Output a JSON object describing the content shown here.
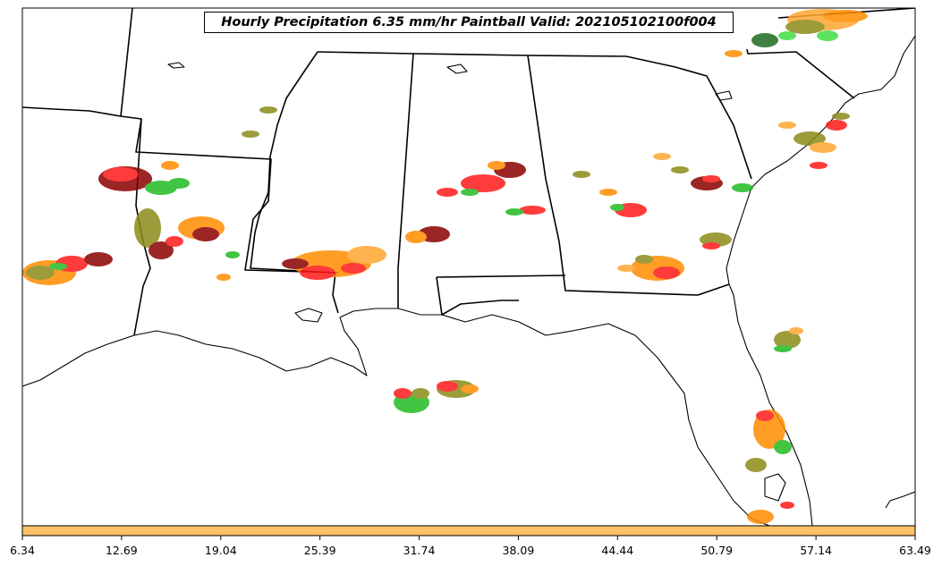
{
  "map": {
    "title": "Hourly Precipitation 6.35 mm/hr Paintball Valid: 202105102100f004"
  },
  "colorbar": {
    "fill_color": "#ffc266",
    "tick_labels": [
      "6.34",
      "12.69",
      "19.04",
      "25.39",
      "31.74",
      "38.09",
      "44.44",
      "50.79",
      "57.14",
      "63.49"
    ]
  },
  "palette": {
    "red": "#ff1a1a",
    "dark_red": "#8b0000",
    "orange": "#ff8c00",
    "light_orange": "#ffa630",
    "olive": "#8b8b1a",
    "green": "#22bb22",
    "light_green": "#44dd44",
    "dark_green": "#1f6b1f",
    "black": "#222222"
  }
}
